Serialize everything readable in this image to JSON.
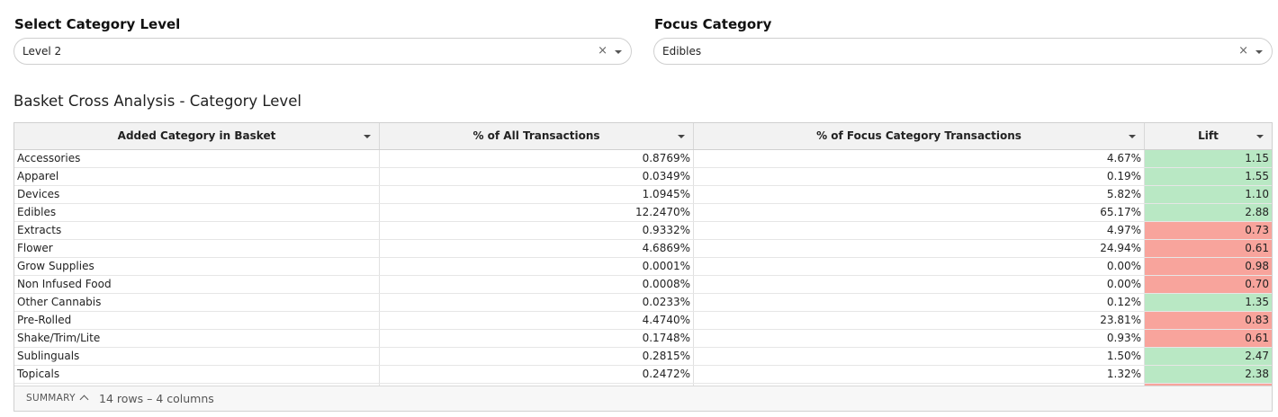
{
  "filters": {
    "category_level": {
      "label": "Select Category Level",
      "value": "Level 2",
      "clear": "×"
    },
    "focus_category": {
      "label": "Focus Category",
      "value": "Edibles",
      "clear": "×"
    }
  },
  "section_title": "Basket Cross Analysis - Category Level",
  "table": {
    "columns": [
      "Added Category in Basket",
      "% of All Transactions",
      "% of Focus Category Transactions",
      "Lift"
    ],
    "rows": [
      {
        "category": "Accessories",
        "pct_all": "0.8769%",
        "pct_focus": "4.67%",
        "lift": "1.15",
        "lift_status": "positive"
      },
      {
        "category": "Apparel",
        "pct_all": "0.0349%",
        "pct_focus": "0.19%",
        "lift": "1.55",
        "lift_status": "positive"
      },
      {
        "category": "Devices",
        "pct_all": "1.0945%",
        "pct_focus": "5.82%",
        "lift": "1.10",
        "lift_status": "positive"
      },
      {
        "category": "Edibles",
        "pct_all": "12.2470%",
        "pct_focus": "65.17%",
        "lift": "2.88",
        "lift_status": "positive"
      },
      {
        "category": "Extracts",
        "pct_all": "0.9332%",
        "pct_focus": "4.97%",
        "lift": "0.73",
        "lift_status": "negative"
      },
      {
        "category": "Flower",
        "pct_all": "4.6869%",
        "pct_focus": "24.94%",
        "lift": "0.61",
        "lift_status": "negative"
      },
      {
        "category": "Grow Supplies",
        "pct_all": "0.0001%",
        "pct_focus": "0.00%",
        "lift": "0.98",
        "lift_status": "negative"
      },
      {
        "category": "Non Infused Food",
        "pct_all": "0.0008%",
        "pct_focus": "0.00%",
        "lift": "0.70",
        "lift_status": "negative"
      },
      {
        "category": "Other Cannabis",
        "pct_all": "0.0233%",
        "pct_focus": "0.12%",
        "lift": "1.35",
        "lift_status": "positive"
      },
      {
        "category": "Pre-Rolled",
        "pct_all": "4.4740%",
        "pct_focus": "23.81%",
        "lift": "0.83",
        "lift_status": "negative"
      },
      {
        "category": "Shake/Trim/Lite",
        "pct_all": "0.1748%",
        "pct_focus": "0.93%",
        "lift": "0.61",
        "lift_status": "negative"
      },
      {
        "category": "Sublinguals",
        "pct_all": "0.2815%",
        "pct_focus": "1.50%",
        "lift": "2.47",
        "lift_status": "positive"
      },
      {
        "category": "Topicals",
        "pct_all": "0.2472%",
        "pct_focus": "1.32%",
        "lift": "2.38",
        "lift_status": "positive"
      },
      {
        "category": "",
        "pct_all": "",
        "pct_focus": "",
        "lift": "",
        "lift_status": "negative"
      }
    ],
    "summary": {
      "label": "SUMMARY",
      "text": "14 rows – 4 columns"
    }
  },
  "colors": {
    "positive": "#b9e8c4",
    "negative": "#f8a49c"
  },
  "icons": {
    "select_caret": "caret-down-icon",
    "clear": "clear-icon",
    "summary_toggle": "chevron-up-icon"
  }
}
